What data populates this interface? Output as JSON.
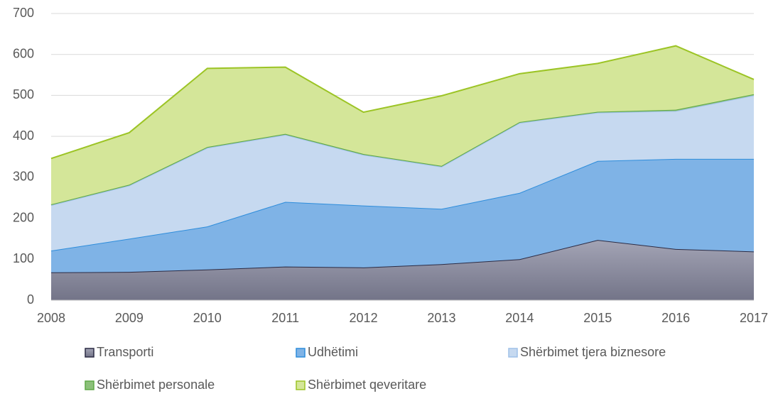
{
  "chart_data": {
    "type": "stacked_area",
    "categories": [
      "2008",
      "2009",
      "2010",
      "2011",
      "2012",
      "2013",
      "2014",
      "2015",
      "2016",
      "2017"
    ],
    "series": [
      {
        "name": "Transporti",
        "color": "#85869b",
        "stroke": "#2b2b44",
        "values": [
          68,
          69,
          75,
          82,
          80,
          88,
          100,
          147,
          125,
          119
        ]
      },
      {
        "name": "Udhëtimi",
        "color": "#7fb3e6",
        "stroke": "#2e8ddb",
        "values": [
          53,
          81,
          105,
          158,
          151,
          135,
          162,
          193,
          220,
          226
        ]
      },
      {
        "name": "Shërbimet tjera biznesore",
        "color": "#c6d9f0",
        "stroke": "#9fc1e8",
        "values": [
          111,
          130,
          192,
          164,
          124,
          103,
          171,
          118,
          117,
          155
        ]
      },
      {
        "name": "Shërbimet personale",
        "color": "#8cc07a",
        "stroke": "#5ea847",
        "values": [
          2,
          2,
          2,
          2,
          2,
          2,
          2,
          2,
          3,
          3
        ]
      },
      {
        "name": "Shërbimet qeveritare",
        "color": "#d4e699",
        "stroke": "#9cc425",
        "values": [
          112,
          127,
          192,
          163,
          102,
          171,
          118,
          118,
          156,
          36
        ]
      }
    ],
    "ylim": [
      0,
      700
    ],
    "yticks": [
      0,
      100,
      200,
      300,
      400,
      500,
      600,
      700
    ],
    "grid": true
  }
}
